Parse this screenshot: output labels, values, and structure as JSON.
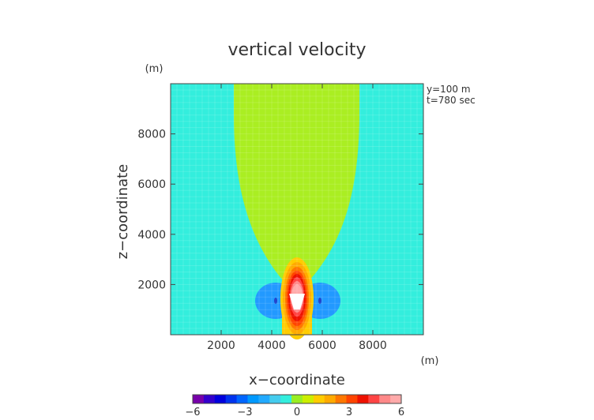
{
  "chart_data": {
    "type": "heatmap",
    "title": "vertical velocity",
    "xlabel": "x−coordinate",
    "ylabel": "z−coordinate",
    "x_unit": "(m)",
    "y_unit": "(m)",
    "annotations": [
      "y=100  m",
      "t=780  sec"
    ],
    "xlim": [
      0,
      10000
    ],
    "ylim": [
      0,
      10000
    ],
    "x_ticks": [
      2000,
      4000,
      6000,
      8000
    ],
    "y_ticks": [
      2000,
      4000,
      6000,
      8000
    ],
    "x_tick_labels": [
      "2000",
      "4000",
      "6000",
      "8000"
    ],
    "y_tick_labels": [
      "2000",
      "4000",
      "6000",
      "8000"
    ],
    "colorbar": {
      "min": -6,
      "max": 6,
      "tick_values": [
        -6,
        -3,
        0,
        3,
        6
      ],
      "tick_labels": [
        "−6",
        "−3",
        "0",
        "3",
        "6"
      ],
      "colors": [
        "#7700aa",
        "#3300cc",
        "#0000dd",
        "#0033ee",
        "#0066ff",
        "#0099ff",
        "#22aaff",
        "#44ccee",
        "#33eedd",
        "#99ee22",
        "#ccee00",
        "#ffcc00",
        "#ffaa00",
        "#ff7700",
        "#ff4400",
        "#ee1100",
        "#ff4444",
        "#ff8888",
        "#ffaaaa"
      ]
    },
    "background_color": "#33eedd",
    "field_regions": [
      {
        "name": "weak updraft plume",
        "value": 0.5,
        "color": "#aaee22"
      },
      {
        "name": "downdraft left",
        "value": -2,
        "color": "#2299ff",
        "center": [
          3950,
          1400
        ]
      },
      {
        "name": "downdraft right",
        "value": -2,
        "color": "#2299ff",
        "center": [
          5800,
          1400
        ]
      },
      {
        "name": "updraft core",
        "value": 6,
        "color": "#ffffff",
        "center": [
          4900,
          1400
        ]
      }
    ]
  }
}
